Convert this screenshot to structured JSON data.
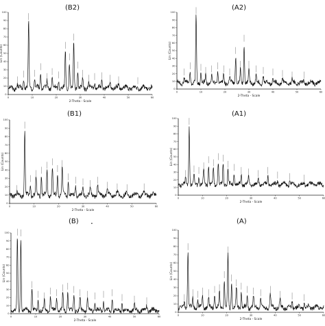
{
  "figure": {
    "panels": [
      {
        "id": "B2",
        "label": "(B2)",
        "xlabel": "2-Theta - Scale",
        "ylabel": "Lin (Counts)"
      },
      {
        "id": "A2",
        "label": "(A2)",
        "xlabel": "2-Theta - Scale",
        "ylabel": "Lin (Counts)"
      },
      {
        "id": "B1",
        "label": "(B1)",
        "xlabel": "2-Theta - Scale",
        "ylabel": "Lin (Counts)"
      },
      {
        "id": "A1",
        "label": "(A1)",
        "xlabel": "2-Theta - Scale",
        "ylabel": "Lin (Counts)"
      },
      {
        "id": "B",
        "label": "(B)",
        "xlabel": "2-Theta - Scale",
        "ylabel": "Lin (Counts)"
      },
      {
        "id": "A",
        "label": "(A)",
        "xlabel": "2-Theta - Scale",
        "ylabel": "Lin (Counts)"
      }
    ],
    "marker_dot": "."
  },
  "colors": {
    "trace": "#111111",
    "axis": "#222222",
    "background": "#ffffff"
  },
  "chart_data": [
    {
      "id": "B2",
      "type": "line",
      "title": "(B2)",
      "xlabel": "2-Theta - Scale",
      "ylabel": "Lin (Counts)",
      "xlim": [
        0,
        60
      ],
      "ylim": [
        0,
        100
      ],
      "x_ticks": [
        0,
        10,
        20,
        30,
        40,
        50,
        60
      ],
      "y_ticks": [
        0,
        10,
        20,
        30,
        40,
        50,
        60,
        70,
        80,
        90,
        100
      ],
      "baseline": 8,
      "peaks": [
        {
          "x": 3.8,
          "y": 12
        },
        {
          "x": 6.4,
          "y": 19
        },
        {
          "x": 8.5,
          "y": 89
        },
        {
          "x": 11.0,
          "y": 20
        },
        {
          "x": 13.5,
          "y": 28
        },
        {
          "x": 16.2,
          "y": 16
        },
        {
          "x": 18.3,
          "y": 22
        },
        {
          "x": 21.0,
          "y": 18
        },
        {
          "x": 23.8,
          "y": 54
        },
        {
          "x": 25.5,
          "y": 40
        },
        {
          "x": 27.3,
          "y": 64
        },
        {
          "x": 29.0,
          "y": 30
        },
        {
          "x": 31.0,
          "y": 20
        },
        {
          "x": 33.5,
          "y": 14
        },
        {
          "x": 36.0,
          "y": 16
        },
        {
          "x": 39.0,
          "y": 17
        },
        {
          "x": 42.5,
          "y": 14
        },
        {
          "x": 46.0,
          "y": 12
        },
        {
          "x": 54.0,
          "y": 11
        }
      ]
    },
    {
      "id": "A2",
      "type": "line",
      "title": "(A2)",
      "xlabel": "2-Theta - Scale",
      "ylabel": "Lin (Counts)",
      "xlim": [
        0,
        60
      ],
      "ylim": [
        0,
        100
      ],
      "x_ticks": [
        0,
        10,
        20,
        30,
        40,
        50,
        60
      ],
      "y_ticks": [
        0,
        10,
        20,
        30,
        40,
        50,
        60,
        70,
        80,
        90,
        100
      ],
      "baseline": 8,
      "peaks": [
        {
          "x": 3.0,
          "y": 16
        },
        {
          "x": 5.5,
          "y": 24
        },
        {
          "x": 8.0,
          "y": 96
        },
        {
          "x": 10.0,
          "y": 22
        },
        {
          "x": 12.0,
          "y": 18
        },
        {
          "x": 14.5,
          "y": 20
        },
        {
          "x": 17.0,
          "y": 24
        },
        {
          "x": 19.5,
          "y": 20
        },
        {
          "x": 22.0,
          "y": 16
        },
        {
          "x": 24.5,
          "y": 44
        },
        {
          "x": 26.5,
          "y": 26
        },
        {
          "x": 28.0,
          "y": 60
        },
        {
          "x": 30.0,
          "y": 26
        },
        {
          "x": 33.0,
          "y": 20
        },
        {
          "x": 36.0,
          "y": 18
        },
        {
          "x": 40.0,
          "y": 16
        },
        {
          "x": 44.0,
          "y": 14
        },
        {
          "x": 48.0,
          "y": 12
        },
        {
          "x": 53.0,
          "y": 12
        }
      ]
    },
    {
      "id": "B1",
      "type": "line",
      "title": "(B1)",
      "xlabel": "2-Theta - Scale",
      "ylabel": "Lin (Counts)",
      "xlim": [
        0,
        60
      ],
      "ylim": [
        0,
        100
      ],
      "x_ticks": [
        0,
        10,
        20,
        30,
        40,
        50,
        60
      ],
      "y_ticks": [
        0,
        10,
        20,
        30,
        40,
        50,
        60,
        70,
        80,
        90,
        100
      ],
      "baseline": 10,
      "peaks": [
        {
          "x": 3.0,
          "y": 12
        },
        {
          "x": 6.2,
          "y": 88
        },
        {
          "x": 8.5,
          "y": 24
        },
        {
          "x": 10.8,
          "y": 30
        },
        {
          "x": 13.0,
          "y": 34
        },
        {
          "x": 15.3,
          "y": 40
        },
        {
          "x": 17.5,
          "y": 44
        },
        {
          "x": 19.6,
          "y": 36
        },
        {
          "x": 21.5,
          "y": 42
        },
        {
          "x": 24.0,
          "y": 26
        },
        {
          "x": 27.0,
          "y": 22
        },
        {
          "x": 30.0,
          "y": 20
        },
        {
          "x": 33.0,
          "y": 18
        },
        {
          "x": 36.0,
          "y": 22
        },
        {
          "x": 40.0,
          "y": 16
        },
        {
          "x": 44.0,
          "y": 14
        },
        {
          "x": 48.0,
          "y": 13
        },
        {
          "x": 55.0,
          "y": 14
        }
      ]
    },
    {
      "id": "A1",
      "type": "line",
      "title": "(A1)",
      "xlabel": "2-Theta - Scale",
      "ylabel": "Lin (Counts)",
      "xlim": [
        0,
        60
      ],
      "ylim": [
        0,
        100
      ],
      "x_ticks": [
        0,
        10,
        20,
        30,
        40,
        50,
        60
      ],
      "y_ticks": [
        0,
        10,
        20,
        30,
        40,
        50,
        60,
        70,
        80,
        90,
        100
      ],
      "baseline": 14,
      "peaks": [
        {
          "x": 3.0,
          "y": 22
        },
        {
          "x": 4.5,
          "y": 90
        },
        {
          "x": 6.5,
          "y": 28
        },
        {
          "x": 8.5,
          "y": 26
        },
        {
          "x": 10.5,
          "y": 32
        },
        {
          "x": 12.5,
          "y": 40
        },
        {
          "x": 14.5,
          "y": 36
        },
        {
          "x": 16.5,
          "y": 44
        },
        {
          "x": 18.5,
          "y": 42
        },
        {
          "x": 20.5,
          "y": 34
        },
        {
          "x": 23.0,
          "y": 30
        },
        {
          "x": 26.0,
          "y": 26
        },
        {
          "x": 29.0,
          "y": 24
        },
        {
          "x": 33.0,
          "y": 22
        },
        {
          "x": 37.0,
          "y": 26
        },
        {
          "x": 41.0,
          "y": 20
        },
        {
          "x": 46.0,
          "y": 18
        },
        {
          "x": 52.0,
          "y": 16
        }
      ]
    },
    {
      "id": "B",
      "type": "line",
      "title": "(B)",
      "xlabel": "2-Theta - Scale",
      "ylabel": "Lin (Counts)",
      "xlim": [
        0,
        60
      ],
      "ylim": [
        0,
        100
      ],
      "x_ticks": [
        0,
        10,
        20,
        30,
        40,
        50,
        60
      ],
      "y_ticks": [
        0,
        10,
        20,
        30,
        40,
        50,
        60,
        70,
        80,
        90,
        100
      ],
      "baseline": 4,
      "peaks": [
        {
          "x": 2.6,
          "y": 95
        },
        {
          "x": 4.0,
          "y": 94
        },
        {
          "x": 8.5,
          "y": 30
        },
        {
          "x": 11.0,
          "y": 18
        },
        {
          "x": 13.5,
          "y": 16
        },
        {
          "x": 16.0,
          "y": 22
        },
        {
          "x": 18.5,
          "y": 20
        },
        {
          "x": 21.0,
          "y": 26
        },
        {
          "x": 23.0,
          "y": 28
        },
        {
          "x": 25.5,
          "y": 24
        },
        {
          "x": 28.0,
          "y": 20
        },
        {
          "x": 31.0,
          "y": 18
        },
        {
          "x": 34.0,
          "y": 16
        },
        {
          "x": 37.5,
          "y": 18
        },
        {
          "x": 41.0,
          "y": 20
        },
        {
          "x": 45.0,
          "y": 14
        },
        {
          "x": 50.0,
          "y": 12
        },
        {
          "x": 55.0,
          "y": 10
        }
      ]
    },
    {
      "id": "A",
      "type": "line",
      "title": "(A)",
      "xlabel": "2-Theta - Scale",
      "ylabel": "Lin (Counts)",
      "xlim": [
        0,
        60
      ],
      "ylim": [
        0,
        100
      ],
      "x_ticks": [
        0,
        10,
        20,
        30,
        40,
        50,
        60
      ],
      "y_ticks": [
        0,
        10,
        20,
        30,
        40,
        50,
        60,
        70,
        80,
        90,
        100
      ],
      "baseline": 6,
      "peaks": [
        {
          "x": 2.5,
          "y": 12
        },
        {
          "x": 4.0,
          "y": 74
        },
        {
          "x": 6.0,
          "y": 18
        },
        {
          "x": 8.0,
          "y": 16
        },
        {
          "x": 10.0,
          "y": 20
        },
        {
          "x": 12.5,
          "y": 18
        },
        {
          "x": 15.0,
          "y": 22
        },
        {
          "x": 17.0,
          "y": 24
        },
        {
          "x": 19.0,
          "y": 40
        },
        {
          "x": 20.5,
          "y": 70
        },
        {
          "x": 22.0,
          "y": 36
        },
        {
          "x": 24.0,
          "y": 30
        },
        {
          "x": 26.0,
          "y": 26
        },
        {
          "x": 28.5,
          "y": 22
        },
        {
          "x": 31.0,
          "y": 20
        },
        {
          "x": 34.0,
          "y": 18
        },
        {
          "x": 38.0,
          "y": 22
        },
        {
          "x": 42.0,
          "y": 16
        },
        {
          "x": 47.0,
          "y": 14
        },
        {
          "x": 52.0,
          "y": 12
        }
      ]
    }
  ]
}
